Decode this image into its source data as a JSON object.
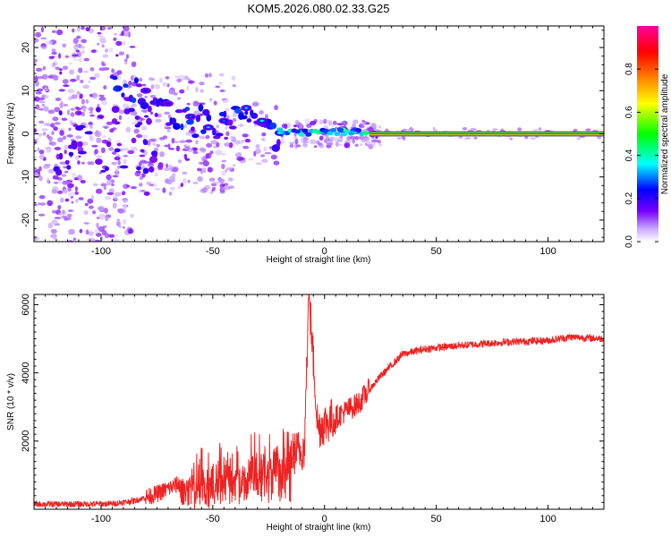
{
  "chart_data": [
    {
      "type": "heatmap",
      "title": "KOM5.2026.080.02.33.G25",
      "xlabel": "Height of straight line (km)",
      "ylabel": "Frequency (Hz)",
      "xlim": [
        -130,
        125
      ],
      "ylim": [
        -25,
        25
      ],
      "xticks": [
        -100,
        -50,
        0,
        50,
        100
      ],
      "yticks": [
        -20,
        -10,
        0,
        10,
        20
      ],
      "xtick_labels": [
        "-100",
        "-50",
        "0",
        "50",
        "100"
      ],
      "ytick_labels": [
        "-20",
        "-10",
        "0",
        "10",
        "20"
      ],
      "colorbar": {
        "label": "Normalized spectral amplitude",
        "range": [
          0,
          1
        ],
        "ticks": [
          0.0,
          0.2,
          0.4,
          0.6,
          0.8
        ],
        "tick_labels": [
          "0.0",
          "0.2",
          "0.4",
          "0.6",
          "0.8"
        ],
        "colormap": [
          "#e8d8ff",
          "#7a00ff",
          "#0000ff",
          "#00ffff",
          "#00ff00",
          "#ffff00",
          "#ff8000",
          "#ff0000",
          "#ff00a0"
        ]
      },
      "carrier_line": {
        "x_start": 20,
        "x_end": 125,
        "frequency": 0,
        "amplitude": 0.95
      },
      "features": [
        {
          "x": -10,
          "y": 0.5,
          "amp": 0.55
        },
        {
          "x": 0,
          "y": 0.5,
          "amp": 0.6
        },
        {
          "x": 8,
          "y": 1.0,
          "amp": 0.75
        },
        {
          "x": 14,
          "y": 0.7,
          "amp": 0.65
        },
        {
          "x": -20,
          "y": 0.2,
          "amp": 0.45
        },
        {
          "x": -28,
          "y": 3,
          "amp": 0.4
        },
        {
          "x": -35,
          "y": 6,
          "amp": 0.35
        },
        {
          "x": -45,
          "y": 3,
          "amp": 0.3
        },
        {
          "x": -52,
          "y": 1.5,
          "amp": 0.35
        },
        {
          "x": -60,
          "y": 4,
          "amp": 0.3
        },
        {
          "x": -70,
          "y": 7,
          "amp": 0.25
        },
        {
          "x": -80,
          "y": 10,
          "amp": 0.25
        }
      ]
    },
    {
      "type": "line",
      "xlabel": "Height of straight line (km)",
      "ylabel": "SNR (10 * v/v)",
      "xlim": [
        -130,
        125
      ],
      "ylim": [
        0,
        6300
      ],
      "xticks": [
        -100,
        -50,
        0,
        50,
        100
      ],
      "yticks": [
        2000,
        4000,
        6000
      ],
      "xtick_labels": [
        "-100",
        "-50",
        "0",
        "50",
        "100"
      ],
      "ytick_labels": [
        "2000",
        "4000",
        "6000"
      ],
      "color": "#ee2222",
      "series": [
        {
          "name": "SNR",
          "x": [
            -130,
            -110,
            -95,
            -85,
            -75,
            -65,
            -55,
            -45,
            -35,
            -25,
            -15,
            -9,
            -7,
            -3,
            5,
            15,
            25,
            35,
            45,
            60,
            80,
            100,
            110,
            125
          ],
          "values": [
            150,
            150,
            160,
            250,
            450,
            750,
            950,
            1100,
            1250,
            1400,
            1600,
            1800,
            6300,
            2400,
            2700,
            3100,
            3900,
            4550,
            4700,
            4800,
            4900,
            4950,
            5050,
            5000
          ]
        }
      ]
    }
  ]
}
